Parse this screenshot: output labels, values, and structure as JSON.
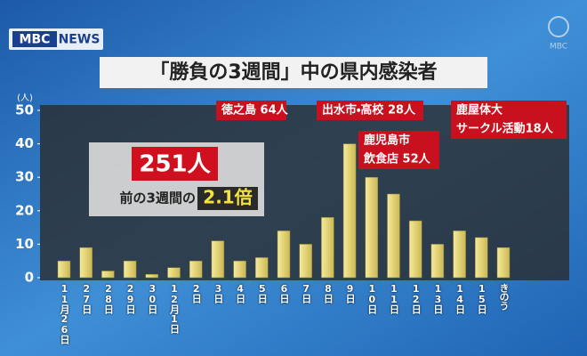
{
  "logo": {
    "mbc": "MBC",
    "news": "NEWS",
    "corner": "MBC"
  },
  "chart_data": {
    "type": "bar",
    "title": "「勝負の3週間」中の県内感染者",
    "y_label": "(人)",
    "categories": [
      "11月26日",
      "27日",
      "28日",
      "29日",
      "30日",
      "12月1日",
      "2日",
      "3日",
      "4日",
      "5日",
      "6日",
      "7日",
      "8日",
      "9日",
      "10日",
      "11日",
      "12日",
      "13日",
      "14日",
      "15日",
      "きのう"
    ],
    "values": [
      5,
      9,
      2,
      5,
      1,
      3,
      5,
      11,
      5,
      6,
      14,
      10,
      18,
      40,
      30,
      25,
      17,
      10,
      14,
      12,
      9
    ],
    "color": "#e3d274",
    "ylim": [
      0,
      50
    ],
    "yticks": [
      0,
      10,
      20,
      30,
      40,
      50
    ],
    "grid": false,
    "summary": {
      "total": "251人",
      "ratio_prefix": "前の3週間の",
      "ratio": "2.1倍"
    },
    "annotations": [
      [
        "徳之島 64人"
      ],
      [
        "出水市・高校 28人"
      ],
      [
        "鹿児島市",
        "飲食店 52人"
      ],
      [
        "鹿屋体大",
        "サークル活動18人"
      ]
    ]
  }
}
